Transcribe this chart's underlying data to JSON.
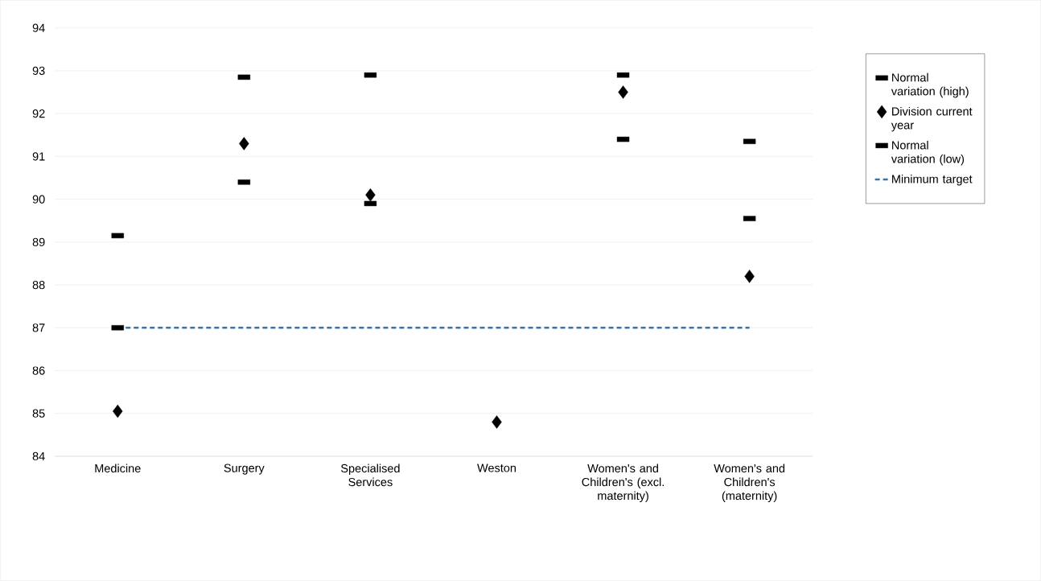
{
  "chart_data": {
    "type": "scatter",
    "categories": [
      "Medicine",
      "Surgery",
      "Specialised Services",
      "Weston",
      "Women's and Children's (excl. maternity)",
      "Women's and Children's (maternity)"
    ],
    "ylim": [
      84,
      94
    ],
    "yticks": [
      84,
      85,
      86,
      87,
      88,
      89,
      90,
      91,
      92,
      93,
      94
    ],
    "grid": "y",
    "legend": "right",
    "series": [
      {
        "name": "Normal variation (high)",
        "color": "#000000",
        "values": [
          89.15,
          92.85,
          92.9,
          null,
          92.9,
          91.35
        ]
      },
      {
        "name": "Division current year",
        "color": "#000000",
        "marker": "diamond",
        "values": [
          85.05,
          91.3,
          90.1,
          84.8,
          92.5,
          88.2
        ]
      },
      {
        "name": "Normal variation (low)",
        "color": "#000000",
        "values": [
          87.0,
          90.4,
          89.9,
          null,
          91.4,
          89.55
        ]
      },
      {
        "name": "Minimum target",
        "type": "line",
        "color": "#41719c",
        "line_style": "dashed",
        "marker": "none",
        "values": [
          87,
          87,
          87,
          87,
          87,
          87
        ]
      }
    ]
  }
}
